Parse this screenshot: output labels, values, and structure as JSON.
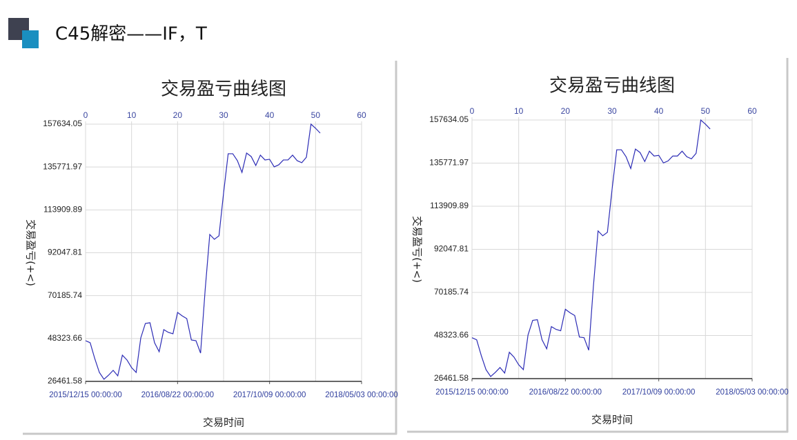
{
  "header": {
    "title": "C45解密——IF，T"
  },
  "chart_data": [
    {
      "type": "line",
      "title": "交易盈亏曲线图",
      "x_label": "交易时间",
      "y_label": "交易盈亏(+<)",
      "x": [
        0,
        1,
        2,
        3,
        4,
        5,
        6,
        7,
        8,
        9,
        10,
        11,
        12,
        13,
        14,
        15,
        16,
        17,
        18,
        19,
        20,
        21,
        22,
        23,
        24,
        25,
        26,
        27,
        28,
        29,
        30,
        31,
        32,
        33,
        34,
        35,
        36,
        37,
        38,
        39,
        40,
        41,
        42,
        43,
        44,
        45,
        46,
        47,
        48,
        49,
        50,
        51
      ],
      "values": [
        47210,
        46160,
        38070,
        31030,
        27520,
        29630,
        32090,
        29280,
        39830,
        37370,
        33500,
        31030,
        48620,
        56010,
        56360,
        46160,
        41590,
        52840,
        51430,
        50730,
        61630,
        59870,
        58470,
        47560,
        47210,
        40880,
        73240,
        101370,
        98910,
        100670,
        122470,
        142530,
        142530,
        139010,
        133030,
        142880,
        141120,
        136550,
        141830,
        139370,
        139710,
        135850,
        136900,
        139370,
        139370,
        141830,
        139010,
        137960,
        140770,
        157630,
        155520,
        153060
      ],
      "color": "#2b2bb5",
      "xlim": [
        0,
        60
      ],
      "xticks": [
        {
          "value": 0,
          "label": "2015/12/15 00:00:00"
        },
        {
          "value": 20,
          "label": "2016/08/22 00:00:00"
        },
        {
          "value": 40,
          "label": "2017/10/09 00:00:00"
        },
        {
          "value": 60,
          "label": "2018/05/03 00:00:00"
        }
      ],
      "x2ticks": [
        0,
        10,
        20,
        30,
        40,
        50,
        60
      ],
      "ylim": [
        26461.58,
        157634.05
      ],
      "yticks": [
        26461.58,
        48323.66,
        70185.74,
        92047.81,
        113909.89,
        135771.97,
        157634.05
      ],
      "grid": true
    },
    {
      "type": "line",
      "title": "交易盈亏曲线图",
      "x_label": "交易时间",
      "y_label": "交易盈亏(+<)",
      "x": [
        0,
        1,
        2,
        3,
        4,
        5,
        6,
        7,
        8,
        9,
        10,
        11,
        12,
        13,
        14,
        15,
        16,
        17,
        18,
        19,
        20,
        21,
        22,
        23,
        24,
        25,
        26,
        27,
        28,
        29,
        30,
        31,
        32,
        33,
        34,
        35,
        36,
        37,
        38,
        39,
        40,
        41,
        42,
        43,
        44,
        45,
        46,
        47,
        48,
        49,
        50,
        51
      ],
      "values": [
        47210,
        46160,
        38070,
        31030,
        27520,
        29630,
        32090,
        29280,
        39830,
        37370,
        33500,
        31030,
        48620,
        56010,
        56360,
        46160,
        41590,
        52840,
        51430,
        50730,
        61630,
        59870,
        58470,
        47560,
        47210,
        40880,
        73240,
        101370,
        98910,
        100670,
        122470,
        142530,
        142530,
        139010,
        133030,
        142880,
        141120,
        136550,
        141830,
        139370,
        139710,
        135850,
        136900,
        139370,
        139370,
        141830,
        139010,
        137960,
        140770,
        157630,
        155520,
        153060
      ],
      "color": "#2b2bb5",
      "xlim": [
        0,
        60
      ],
      "xticks": [
        {
          "value": 0,
          "label": "2015/12/15 00:00:00"
        },
        {
          "value": 20,
          "label": "2016/08/22 00:00:00"
        },
        {
          "value": 40,
          "label": "2017/10/09 00:00:00"
        },
        {
          "value": 60,
          "label": "2018/05/03 00:00:00"
        }
      ],
      "x2ticks": [
        0,
        10,
        20,
        30,
        40,
        50,
        60
      ],
      "ylim": [
        26461.58,
        157634.05
      ],
      "yticks": [
        26461.58,
        48323.66,
        70185.74,
        92047.81,
        113909.89,
        135771.97,
        157634.05
      ],
      "grid": true
    }
  ]
}
